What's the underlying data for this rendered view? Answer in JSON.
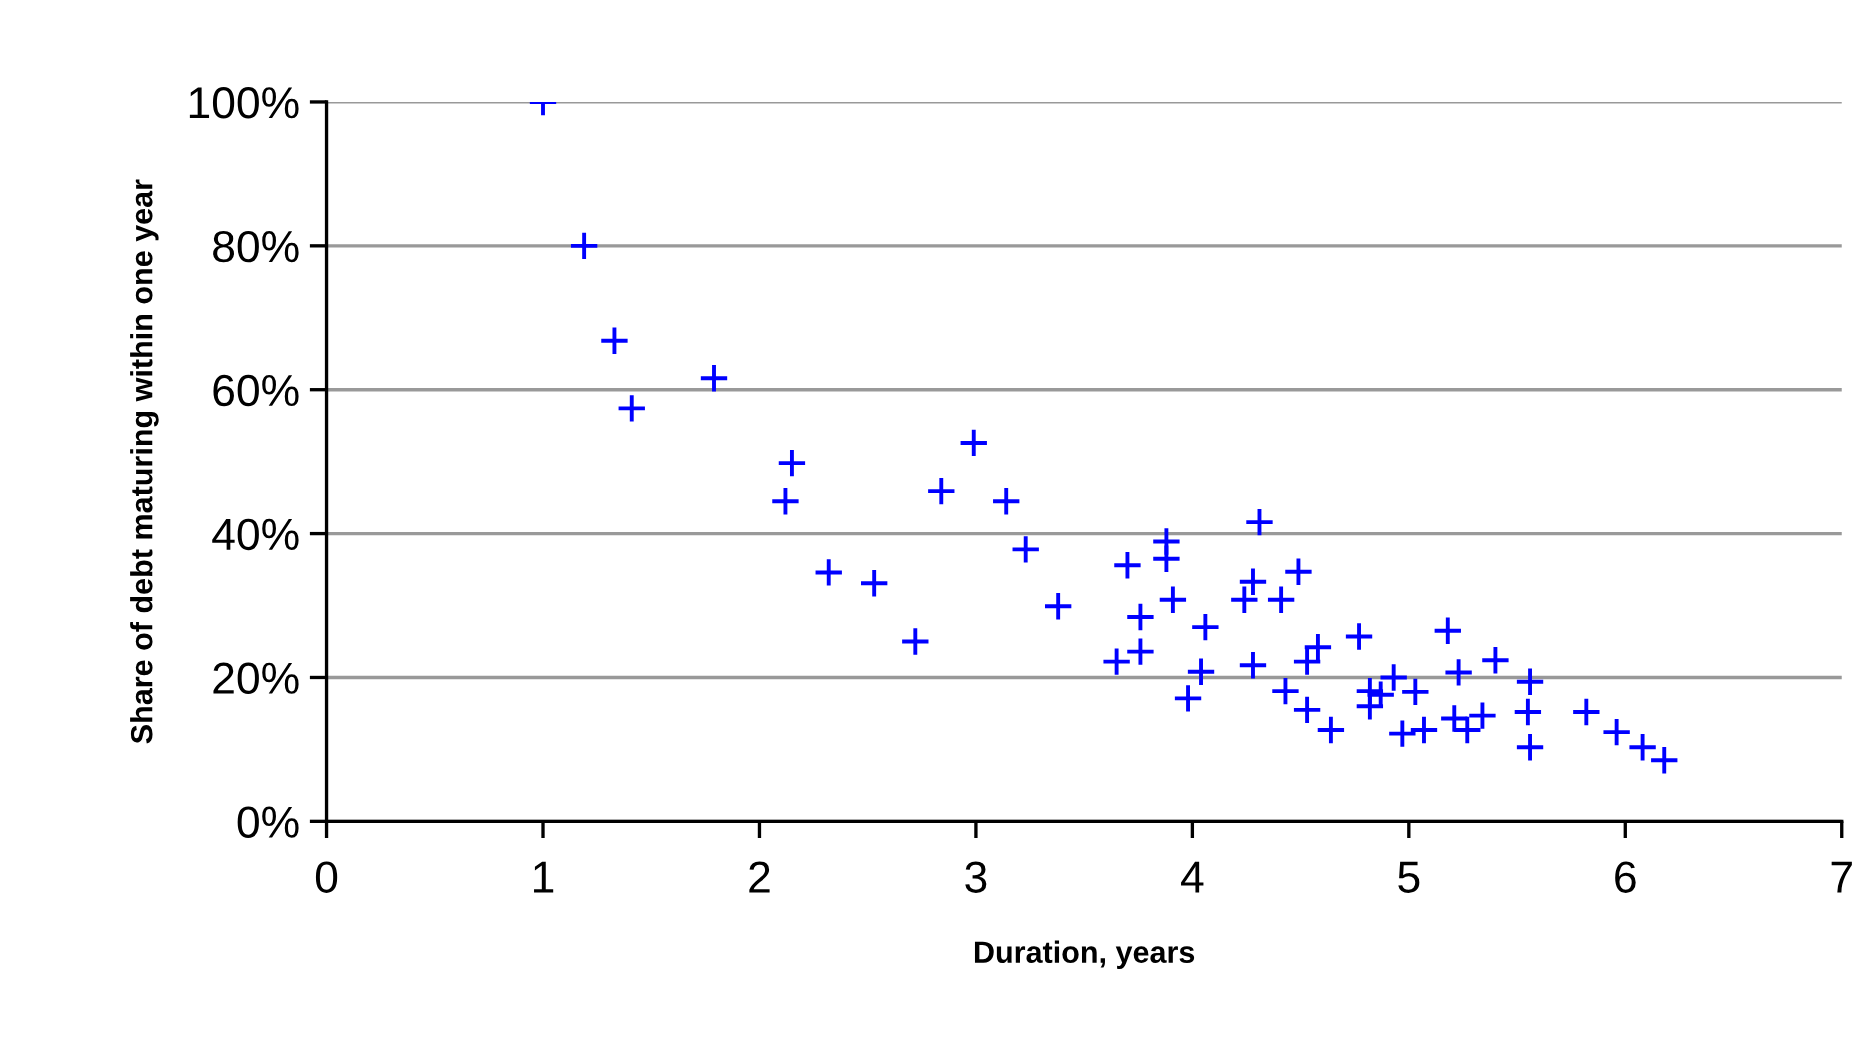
{
  "chart_data": {
    "type": "scatter",
    "xlabel": "Duration, years",
    "ylabel": "Share of debt maturing within one year",
    "x": [
      1.0,
      1.19,
      1.33,
      1.41,
      1.79,
      2.15,
      2.12,
      2.32,
      2.53,
      2.72,
      2.84,
      2.99,
      3.14,
      3.23,
      3.38,
      3.65,
      3.7,
      3.76,
      3.76,
      3.88,
      3.88,
      3.91,
      3.98,
      4.04,
      4.06,
      4.24,
      4.28,
      4.28,
      4.31,
      4.41,
      4.43,
      4.49,
      4.53,
      4.53,
      4.58,
      4.64,
      4.77,
      4.82,
      4.82,
      4.87,
      4.93,
      4.97,
      5.03,
      5.07,
      5.18,
      5.23,
      5.21,
      5.27,
      5.34,
      5.4,
      5.56,
      5.55,
      5.56,
      5.82,
      5.96,
      6.08,
      6.18
    ],
    "series": [
      {
        "color": "#0000ff",
        "values": [
          100,
          80,
          66.8,
          57.4,
          61.6,
          49.8,
          44.5,
          34.6,
          33.1,
          25.0,
          45.9,
          52.6,
          44.5,
          37.8,
          29.9,
          22.2,
          35.6,
          28.4,
          23.6,
          38.9,
          36.5,
          30.8,
          17.1,
          20.8,
          27.0,
          30.8,
          33.3,
          21.7,
          41.6,
          30.8,
          18.1,
          34.7,
          15.5,
          22.2,
          24.2,
          12.7,
          25.7,
          18.1,
          16.0,
          17.6,
          20.0,
          12.2,
          18.0,
          12.7,
          26.5,
          20.7,
          14.3,
          12.7,
          14.7,
          22.4,
          19.4,
          15.2,
          10.3,
          15.2,
          12.4,
          10.3,
          8.5
        ]
      }
    ],
    "marker": "cross",
    "grid": "y",
    "legend": false,
    "xlim": [
      0,
      7
    ],
    "xticks": [
      0,
      1,
      2,
      3,
      4,
      5,
      6,
      7
    ],
    "ylim": [
      0,
      100
    ],
    "yticks": [
      {
        "value": 0,
        "label": "0%"
      },
      {
        "value": 20,
        "label": "20%"
      },
      {
        "value": 40,
        "label": "40%"
      },
      {
        "value": 60,
        "label": "60%"
      },
      {
        "value": 80,
        "label": "80%"
      },
      {
        "value": 100,
        "label": "100%"
      }
    ]
  }
}
